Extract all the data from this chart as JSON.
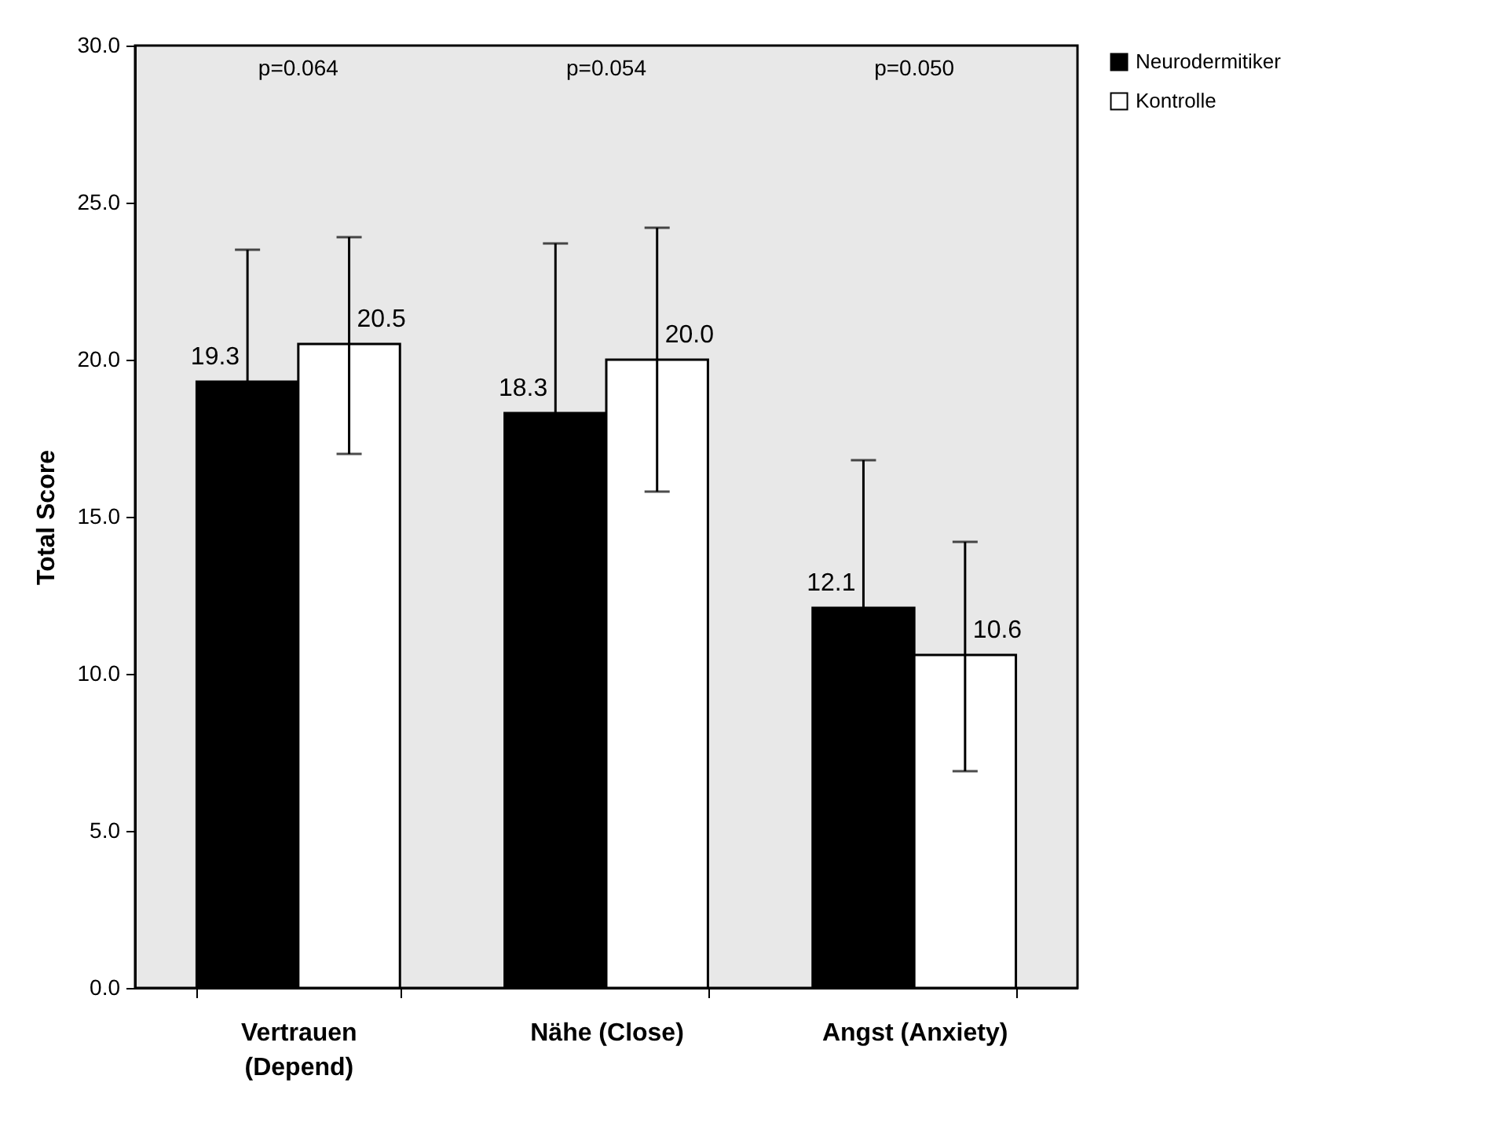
{
  "chart_data": {
    "type": "bar",
    "ylabel": "Total Score",
    "categories": [
      "Vertrauen (Depend)",
      "Nähe (Close)",
      "Angst (Anxiety)"
    ],
    "series": [
      {
        "name": "Neurodermitiker",
        "color": "#000000",
        "values": [
          19.3,
          18.3,
          12.1
        ],
        "value_labels": [
          "19.3",
          "18.3",
          "12.1"
        ],
        "errors": [
          4.2,
          5.4,
          4.7
        ]
      },
      {
        "name": "Kontrolle",
        "color": "#ffffff",
        "values": [
          20.5,
          20.0,
          10.6
        ],
        "value_labels": [
          "20.5",
          "20.0",
          "10.6"
        ],
        "errors": [
          [
            17.0,
            23.9
          ],
          [
            15.8,
            24.2
          ],
          [
            6.9,
            14.2
          ]
        ]
      }
    ],
    "ylim": [
      0,
      30
    ],
    "yticks": [
      {
        "value": 0,
        "label": "0.0"
      },
      {
        "value": 5,
        "label": "5.0"
      },
      {
        "value": 10,
        "label": "10.0"
      },
      {
        "value": 15,
        "label": "15.0"
      },
      {
        "value": 20,
        "label": "20.0"
      },
      {
        "value": 25,
        "label": "25.0"
      },
      {
        "value": 30,
        "label": "30.0"
      }
    ],
    "grid": false,
    "legend": "top right",
    "annotations": [
      "p=0.064",
      "p=0.054",
      "p=0.050"
    ]
  }
}
